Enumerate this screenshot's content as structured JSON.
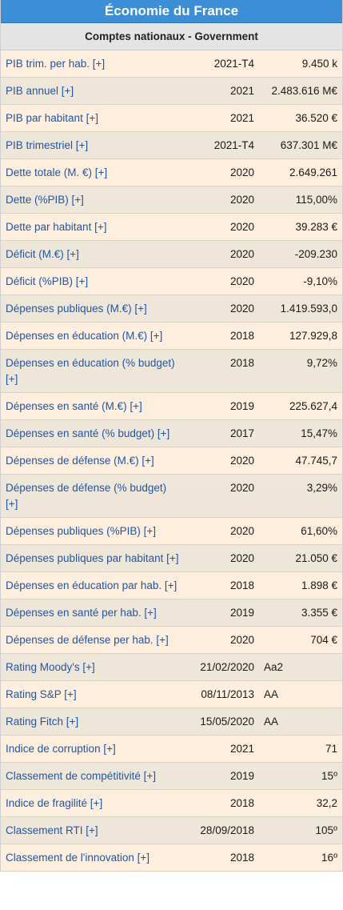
{
  "title": "Économie du France",
  "subtitle": "Comptes nationaux - Government",
  "rows": [
    {
      "label": "PIB trim. per hab. [+]",
      "year": "2021-T4",
      "value": "9.450 k"
    },
    {
      "label": "PIB annuel [+]",
      "year": "2021",
      "value": "2.483.616 M€"
    },
    {
      "label": "PIB par habitant [+]",
      "year": "2021",
      "value": "36.520 €"
    },
    {
      "label": "PIB trimestriel [+]",
      "year": "2021-T4",
      "value": "637.301 M€"
    },
    {
      "label": "Dette totale (M. €) [+]",
      "year": "2020",
      "value": "2.649.261"
    },
    {
      "label": "Dette (%PIB) [+]",
      "year": "2020",
      "value": "115,00%"
    },
    {
      "label": "Dette par habitant [+]",
      "year": "2020",
      "value": "39.283 €"
    },
    {
      "label": "Déficit (M.€) [+]",
      "year": "2020",
      "value": "-209.230"
    },
    {
      "label": "Déficit (%PIB) [+]",
      "year": "2020",
      "value": "-9,10%"
    },
    {
      "label": "Dépenses publiques (M.€) [+]",
      "year": "2020",
      "value": "1.419.593,0"
    },
    {
      "label": "Dépenses en éducation (M.€) [+]",
      "year": "2018",
      "value": "127.929,8"
    },
    {
      "label": "Dépenses en éducation (% budget) [+]",
      "year": "2018",
      "value": "9,72%"
    },
    {
      "label": "Dépenses en santé (M.€) [+]",
      "year": "2019",
      "value": "225.627,4"
    },
    {
      "label": "Dépenses en santé (% budget) [+]",
      "year": "2017",
      "value": "15,47%"
    },
    {
      "label": "Dépenses de défense (M.€) [+]",
      "year": "2020",
      "value": "47.745,7"
    },
    {
      "label": "Dépenses de défense (% budget) [+]",
      "year": "2020",
      "value": "3,29%"
    },
    {
      "label": "Dépenses publiques (%PIB) [+]",
      "year": "2020",
      "value": "61,60%"
    },
    {
      "label": "Dépenses publiques par habitant [+]",
      "year": "2020",
      "value": "21.050 €"
    },
    {
      "label": "Dépenses en éducation par hab. [+]",
      "year": "2018",
      "value": "1.898 €"
    },
    {
      "label": "Dépenses en santé per hab. [+]",
      "year": "2019",
      "value": "3.355 €"
    },
    {
      "label": "Dépenses de défense per hab. [+]",
      "year": "2020",
      "value": "704 €"
    },
    {
      "label": "Rating Moody's [+]",
      "year": "21/02/2020",
      "value": "Aa2",
      "rating": true
    },
    {
      "label": "Rating S&P [+]",
      "year": "08/11/2013",
      "value": "AA",
      "rating": true
    },
    {
      "label": "Rating Fitch [+]",
      "year": "15/05/2020",
      "value": "AA",
      "rating": true
    },
    {
      "label": "Indice de corruption [+]",
      "year": "2021",
      "value": "71"
    },
    {
      "label": "Classement de compétitivité [+]",
      "year": "2019",
      "value": "15º"
    },
    {
      "label": "Indice de fragilité [+]",
      "year": "2018",
      "value": "32,2"
    },
    {
      "label": "Classement RTI [+]",
      "year": "28/09/2018",
      "value": "105º"
    },
    {
      "label": "Classement de l'innovation [+]",
      "year": "2018",
      "value": "16º"
    }
  ]
}
